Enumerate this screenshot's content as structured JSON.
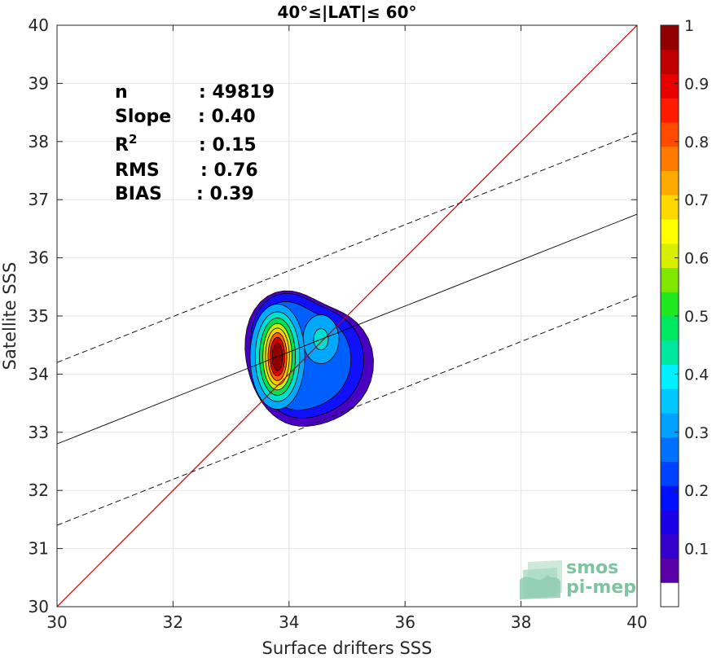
{
  "chart_data": {
    "type": "contour-scatter",
    "title": "40°≤|LAT|≤ 60°",
    "xlabel": "Surface drifters SSS",
    "ylabel": "Satellite SSS",
    "xlim": [
      30,
      40
    ],
    "ylim": [
      30,
      40
    ],
    "xticks": [
      30,
      32,
      34,
      36,
      38,
      40
    ],
    "yticks": [
      30,
      31,
      32,
      33,
      34,
      35,
      36,
      37,
      38,
      39,
      40
    ],
    "grid": true,
    "stats": [
      {
        "label": "n",
        "value": ": 49819"
      },
      {
        "label": "Slope",
        "value": ": 0.40"
      },
      {
        "label": "R",
        "sup": "2",
        "value": ": 0.15"
      },
      {
        "label": "RMS",
        "value": ": 0.76"
      },
      {
        "label": "BIAS",
        "value": ": 0.39"
      }
    ],
    "lines": {
      "identity": {
        "x": [
          30,
          40
        ],
        "y": [
          30,
          40
        ],
        "color": "#cc0000"
      },
      "fit": {
        "x": [
          30,
          40
        ],
        "y": [
          32.8,
          36.75
        ],
        "color": "#000000"
      },
      "fit_upper": {
        "x": [
          30,
          40
        ],
        "y": [
          34.2,
          38.15
        ],
        "color": "#000000",
        "style": "dashed"
      },
      "fit_lower": {
        "x": [
          30,
          40
        ],
        "y": [
          31.4,
          35.35
        ],
        "color": "#000000",
        "style": "dashed"
      }
    },
    "density_peak": {
      "x": 33.8,
      "y": 34.3
    },
    "secondary_peak": {
      "x": 34.55,
      "y": 34.6
    },
    "colorbar": {
      "min": 0,
      "max": 1,
      "tick_values": [
        0.1,
        0.2,
        0.3,
        0.4,
        0.5,
        0.6,
        0.7,
        0.8,
        0.9,
        1
      ],
      "tick_labels": [
        "0.1",
        "0.2",
        "0.3",
        "0.4",
        "0.5",
        "0.6",
        "0.7",
        "0.8",
        "0.9",
        "1"
      ],
      "colors": [
        "#ffffff",
        "#5a00a8",
        "#3300cc",
        "#1a00e6",
        "#0010ff",
        "#0040ff",
        "#0070ff",
        "#00a0ff",
        "#00c8ff",
        "#00f0ff",
        "#00e8a0",
        "#00e860",
        "#20e820",
        "#80e800",
        "#d8f000",
        "#ffff00",
        "#ffd800",
        "#ffaa00",
        "#ff7a00",
        "#ff4a00",
        "#ff1a00",
        "#e80000",
        "#c00000",
        "#900000"
      ]
    },
    "contour_levels": [
      {
        "level": 0.05,
        "color": "#4a00c0"
      },
      {
        "level": 0.1,
        "color": "#1010ff"
      },
      {
        "level": 0.2,
        "color": "#0060ff"
      },
      {
        "level": 0.3,
        "color": "#00a8ff"
      },
      {
        "level": 0.4,
        "color": "#00e0d0"
      },
      {
        "level": 0.5,
        "color": "#00e050"
      },
      {
        "level": 0.6,
        "color": "#c8f000"
      },
      {
        "level": 0.7,
        "color": "#ffd000"
      },
      {
        "level": 0.8,
        "color": "#ff6000"
      },
      {
        "level": 0.9,
        "color": "#e00000"
      },
      {
        "level": 1.0,
        "color": "#900000"
      }
    ]
  },
  "logo": {
    "line1": "smos",
    "line2": "pi-mep",
    "color": "#7fc4a0"
  }
}
